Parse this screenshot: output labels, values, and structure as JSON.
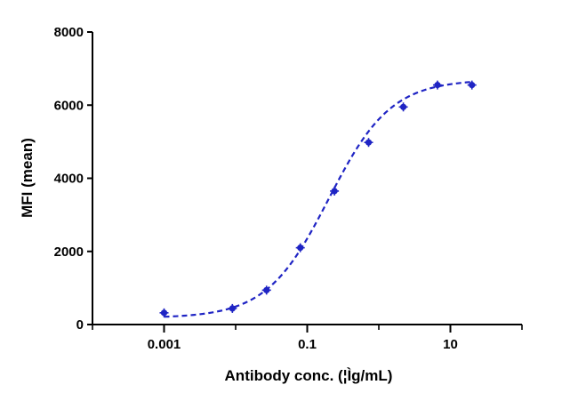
{
  "chart_data": {
    "type": "scatter",
    "title": "",
    "xlabel": "Antibody conc. (¦Ìg/mL)",
    "ylabel": "MFI (mean)",
    "x_scale": "log",
    "xlim": [
      0.0001,
      100
    ],
    "ylim": [
      0,
      8000
    ],
    "x_ticks": [
      0.001,
      0.1,
      10
    ],
    "x_tick_labels": [
      "0.001",
      "0.1",
      "10"
    ],
    "y_ticks": [
      0,
      2000,
      4000,
      6000,
      8000
    ],
    "y_tick_labels": [
      "0",
      "2000",
      "4000",
      "6000",
      "8000"
    ],
    "grid": false,
    "legend": "none",
    "marker_color": "#1f24c4",
    "series": [
      {
        "x": [
          0.001,
          0.009,
          0.027,
          0.08,
          0.24,
          0.72,
          2.2,
          6.6,
          20
        ],
        "values": [
          320,
          440,
          940,
          2100,
          3650,
          4980,
          5950,
          6550,
          6550
        ]
      }
    ],
    "fit": {
      "style": "dashed",
      "color": "#1f24c4",
      "bottom": 180,
      "top": 6700,
      "ec50": 0.2,
      "hill": 1.0
    }
  }
}
